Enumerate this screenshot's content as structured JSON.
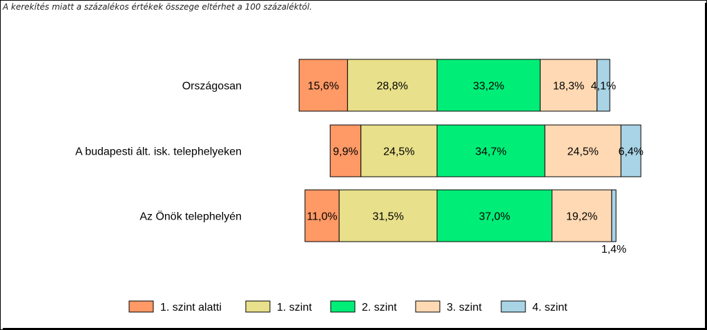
{
  "note": "A kerekítés miatt a  százalékos értékek összege eltérhet a 100 százaléktól.",
  "chart_data": {
    "type": "bar",
    "orientation": "horizontal",
    "stacked": true,
    "categories": [
      "Országosan",
      "A budapesti ált. isk. telephelyeken",
      "Az Önök telephelyén"
    ],
    "center_boundary": "between 1. szint and 2. szint",
    "series": [
      {
        "name": "1. szint alatti",
        "color": "#ff9966",
        "values": [
          15.6,
          9.9,
          11.0
        ],
        "labels": [
          "15,6%",
          "9,9%",
          "11,0%"
        ]
      },
      {
        "name": "1. szint",
        "color": "#e8e08a",
        "values": [
          28.8,
          24.5,
          31.5
        ],
        "labels": [
          "28,8%",
          "24,5%",
          "31,5%"
        ]
      },
      {
        "name": "2. szint",
        "color": "#00ee77",
        "values": [
          33.2,
          34.7,
          37.0
        ],
        "labels": [
          "33,2%",
          "34,7%",
          "37,0%"
        ]
      },
      {
        "name": "3. szint",
        "color": "#ffd9b3",
        "values": [
          18.3,
          24.5,
          19.2
        ],
        "labels": [
          "18,3%",
          "24,5%",
          "19,2%"
        ]
      },
      {
        "name": "4. szint",
        "color": "#a8d4e6",
        "values": [
          4.1,
          6.4,
          1.4
        ],
        "labels": [
          "4,1%",
          "6,4%",
          "1,4%"
        ]
      }
    ],
    "legend_position": "bottom",
    "grid": false
  }
}
